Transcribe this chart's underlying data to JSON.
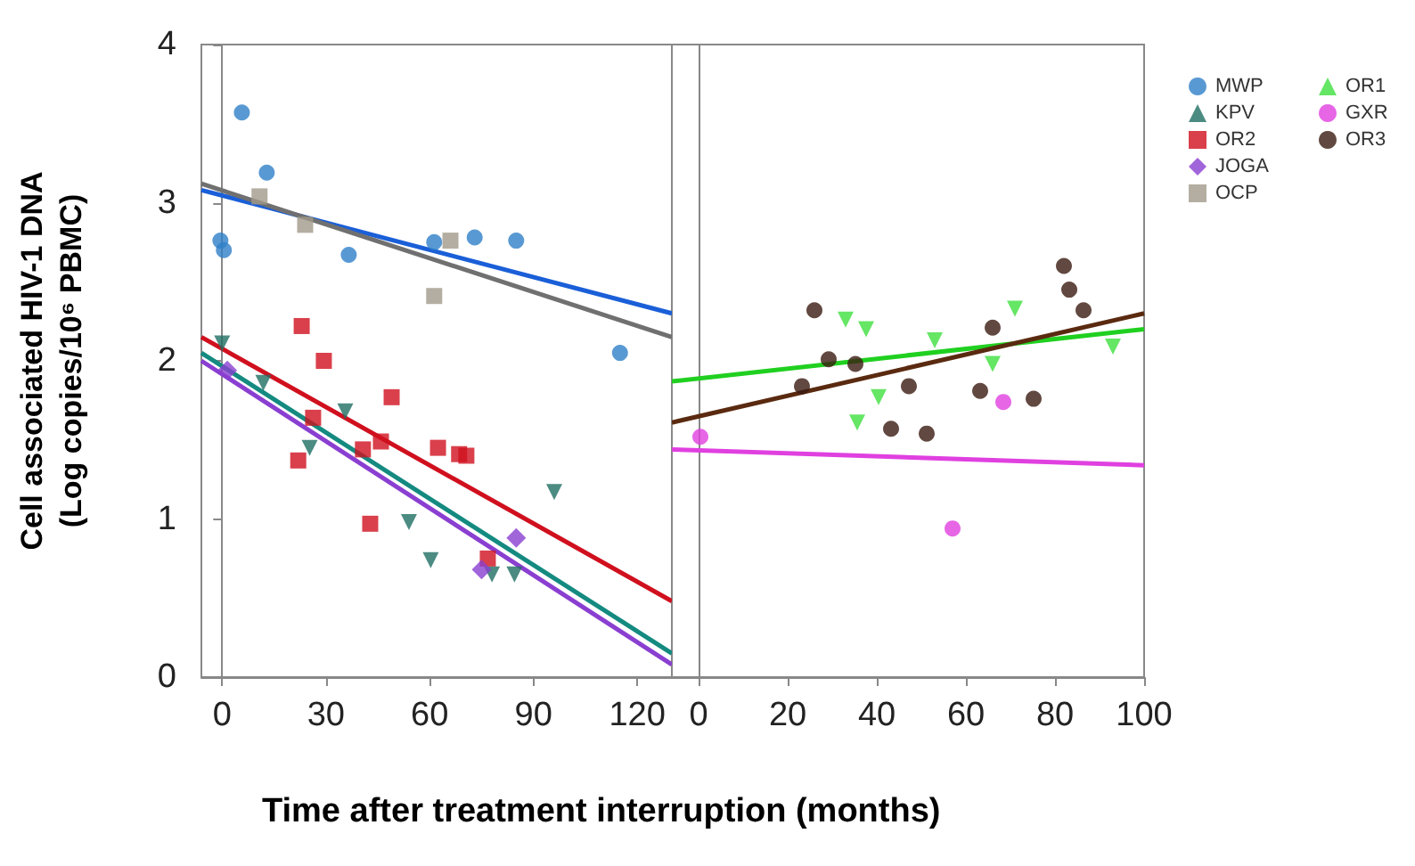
{
  "chart_data": [
    {
      "type": "scatter",
      "ylabel": "Cell associated HIV-1 DNA\n(Log copies/10⁶ PBMC)",
      "xlabel": "Time after treatment interruption (months)",
      "xlim": [
        -6,
        130
      ],
      "xticks": [
        0,
        30,
        60,
        90,
        120
      ],
      "ylim": [
        0,
        4
      ],
      "yticks": [
        0,
        1,
        2,
        3,
        4
      ],
      "legend": "right",
      "series": [
        {
          "name": "MWP",
          "color": "#2f7fc8",
          "marker": "circle",
          "x": [
            5.7,
            12.9,
            -0.5,
            0.5,
            36.6,
            61.3,
            73,
            85,
            115
          ],
          "values": [
            3.57,
            3.19,
            2.76,
            2.7,
            2.67,
            2.75,
            2.78,
            2.76,
            2.05
          ]
        },
        {
          "name": "KPV",
          "color": "#1f6e63",
          "marker": "triangle",
          "x": [
            0,
            11.9,
            35.6,
            25.3,
            54,
            60.3,
            78,
            84.5,
            96
          ],
          "values": [
            2.11,
            1.86,
            1.68,
            1.45,
            0.98,
            0.74,
            0.65,
            0.65,
            1.17
          ]
        },
        {
          "name": "OR2",
          "color": "#d0101e",
          "marker": "square",
          "x": [
            23,
            29.4,
            49,
            26.3,
            22,
            40.7,
            45.9,
            62.4,
            68.5,
            70.6,
            42.8,
            76.8
          ],
          "values": [
            2.22,
            2.0,
            1.77,
            1.64,
            1.37,
            1.44,
            1.49,
            1.45,
            1.41,
            1.4,
            0.97,
            0.75
          ]
        },
        {
          "name": "JOGA",
          "color": "#8a3fd1",
          "marker": "diamond",
          "x": [
            1.5,
            75,
            85
          ],
          "values": [
            1.94,
            0.68,
            0.88
          ]
        },
        {
          "name": "OCP",
          "color": "#a09a8a",
          "marker": "square",
          "x": [
            10.8,
            24,
            61.3,
            66
          ],
          "values": [
            3.04,
            2.86,
            2.41,
            2.76
          ]
        },
        {
          "type": "line",
          "color": "#1a5fd8",
          "marker": "none",
          "x": [
            -6,
            130
          ],
          "values": [
            3.08,
            2.3
          ]
        },
        {
          "type": "line",
          "color": "#707070",
          "marker": "none",
          "x": [
            -6,
            130
          ],
          "values": [
            3.12,
            2.15
          ]
        },
        {
          "type": "line",
          "color": "#d0101e",
          "marker": "none",
          "x": [
            -6,
            130
          ],
          "values": [
            2.15,
            0.48
          ]
        },
        {
          "type": "line",
          "color": "#148a80",
          "marker": "none",
          "x": [
            -6,
            130
          ],
          "values": [
            2.05,
            0.15
          ]
        },
        {
          "type": "line",
          "color": "#8a3fd1",
          "marker": "none",
          "x": [
            -6,
            130
          ],
          "values": [
            2.0,
            0.08
          ]
        }
      ]
    },
    {
      "type": "scatter",
      "xlim": [
        -6,
        100
      ],
      "xticks": [
        0,
        20,
        40,
        60,
        80,
        100
      ],
      "ylim": [
        0,
        4
      ],
      "yticks": [
        0,
        1,
        2,
        3,
        4
      ],
      "tick_labels": "x",
      "legend": "right",
      "series": [
        {
          "name": "OR1",
          "color": "#3ee03e",
          "marker": "triangle",
          "x": [
            33,
            37.6,
            53,
            71,
            66,
            40.4,
            35.6,
            93
          ],
          "values": [
            2.26,
            2.2,
            2.13,
            2.33,
            1.98,
            1.77,
            1.61,
            2.09
          ]
        },
        {
          "name": "GXR",
          "color": "#e040e0",
          "marker": "circle",
          "x": [
            0.4,
            68.4,
            57
          ],
          "values": [
            1.52,
            1.74,
            0.94
          ]
        },
        {
          "name": "OR3",
          "color": "#3a1a10",
          "marker": "circle",
          "x": [
            26,
            29.2,
            35.2,
            23.2,
            47.2,
            43.2,
            51.2,
            63.2,
            66,
            75.2,
            82,
            83.2,
            86.4
          ],
          "values": [
            2.32,
            2.01,
            1.98,
            1.84,
            1.84,
            1.57,
            1.54,
            1.81,
            2.21,
            1.76,
            2.6,
            2.45,
            2.32
          ]
        },
        {
          "type": "line",
          "color": "#20d020",
          "marker": "none",
          "x": [
            -6,
            100
          ],
          "values": [
            1.87,
            2.2
          ]
        },
        {
          "type": "line",
          "color": "#e040e0",
          "marker": "none",
          "x": [
            -6,
            100
          ],
          "values": [
            1.44,
            1.34
          ]
        },
        {
          "type": "line",
          "color": "#5a2a10",
          "marker": "none",
          "x": [
            -6,
            100
          ],
          "values": [
            1.61,
            2.3
          ]
        }
      ]
    }
  ]
}
